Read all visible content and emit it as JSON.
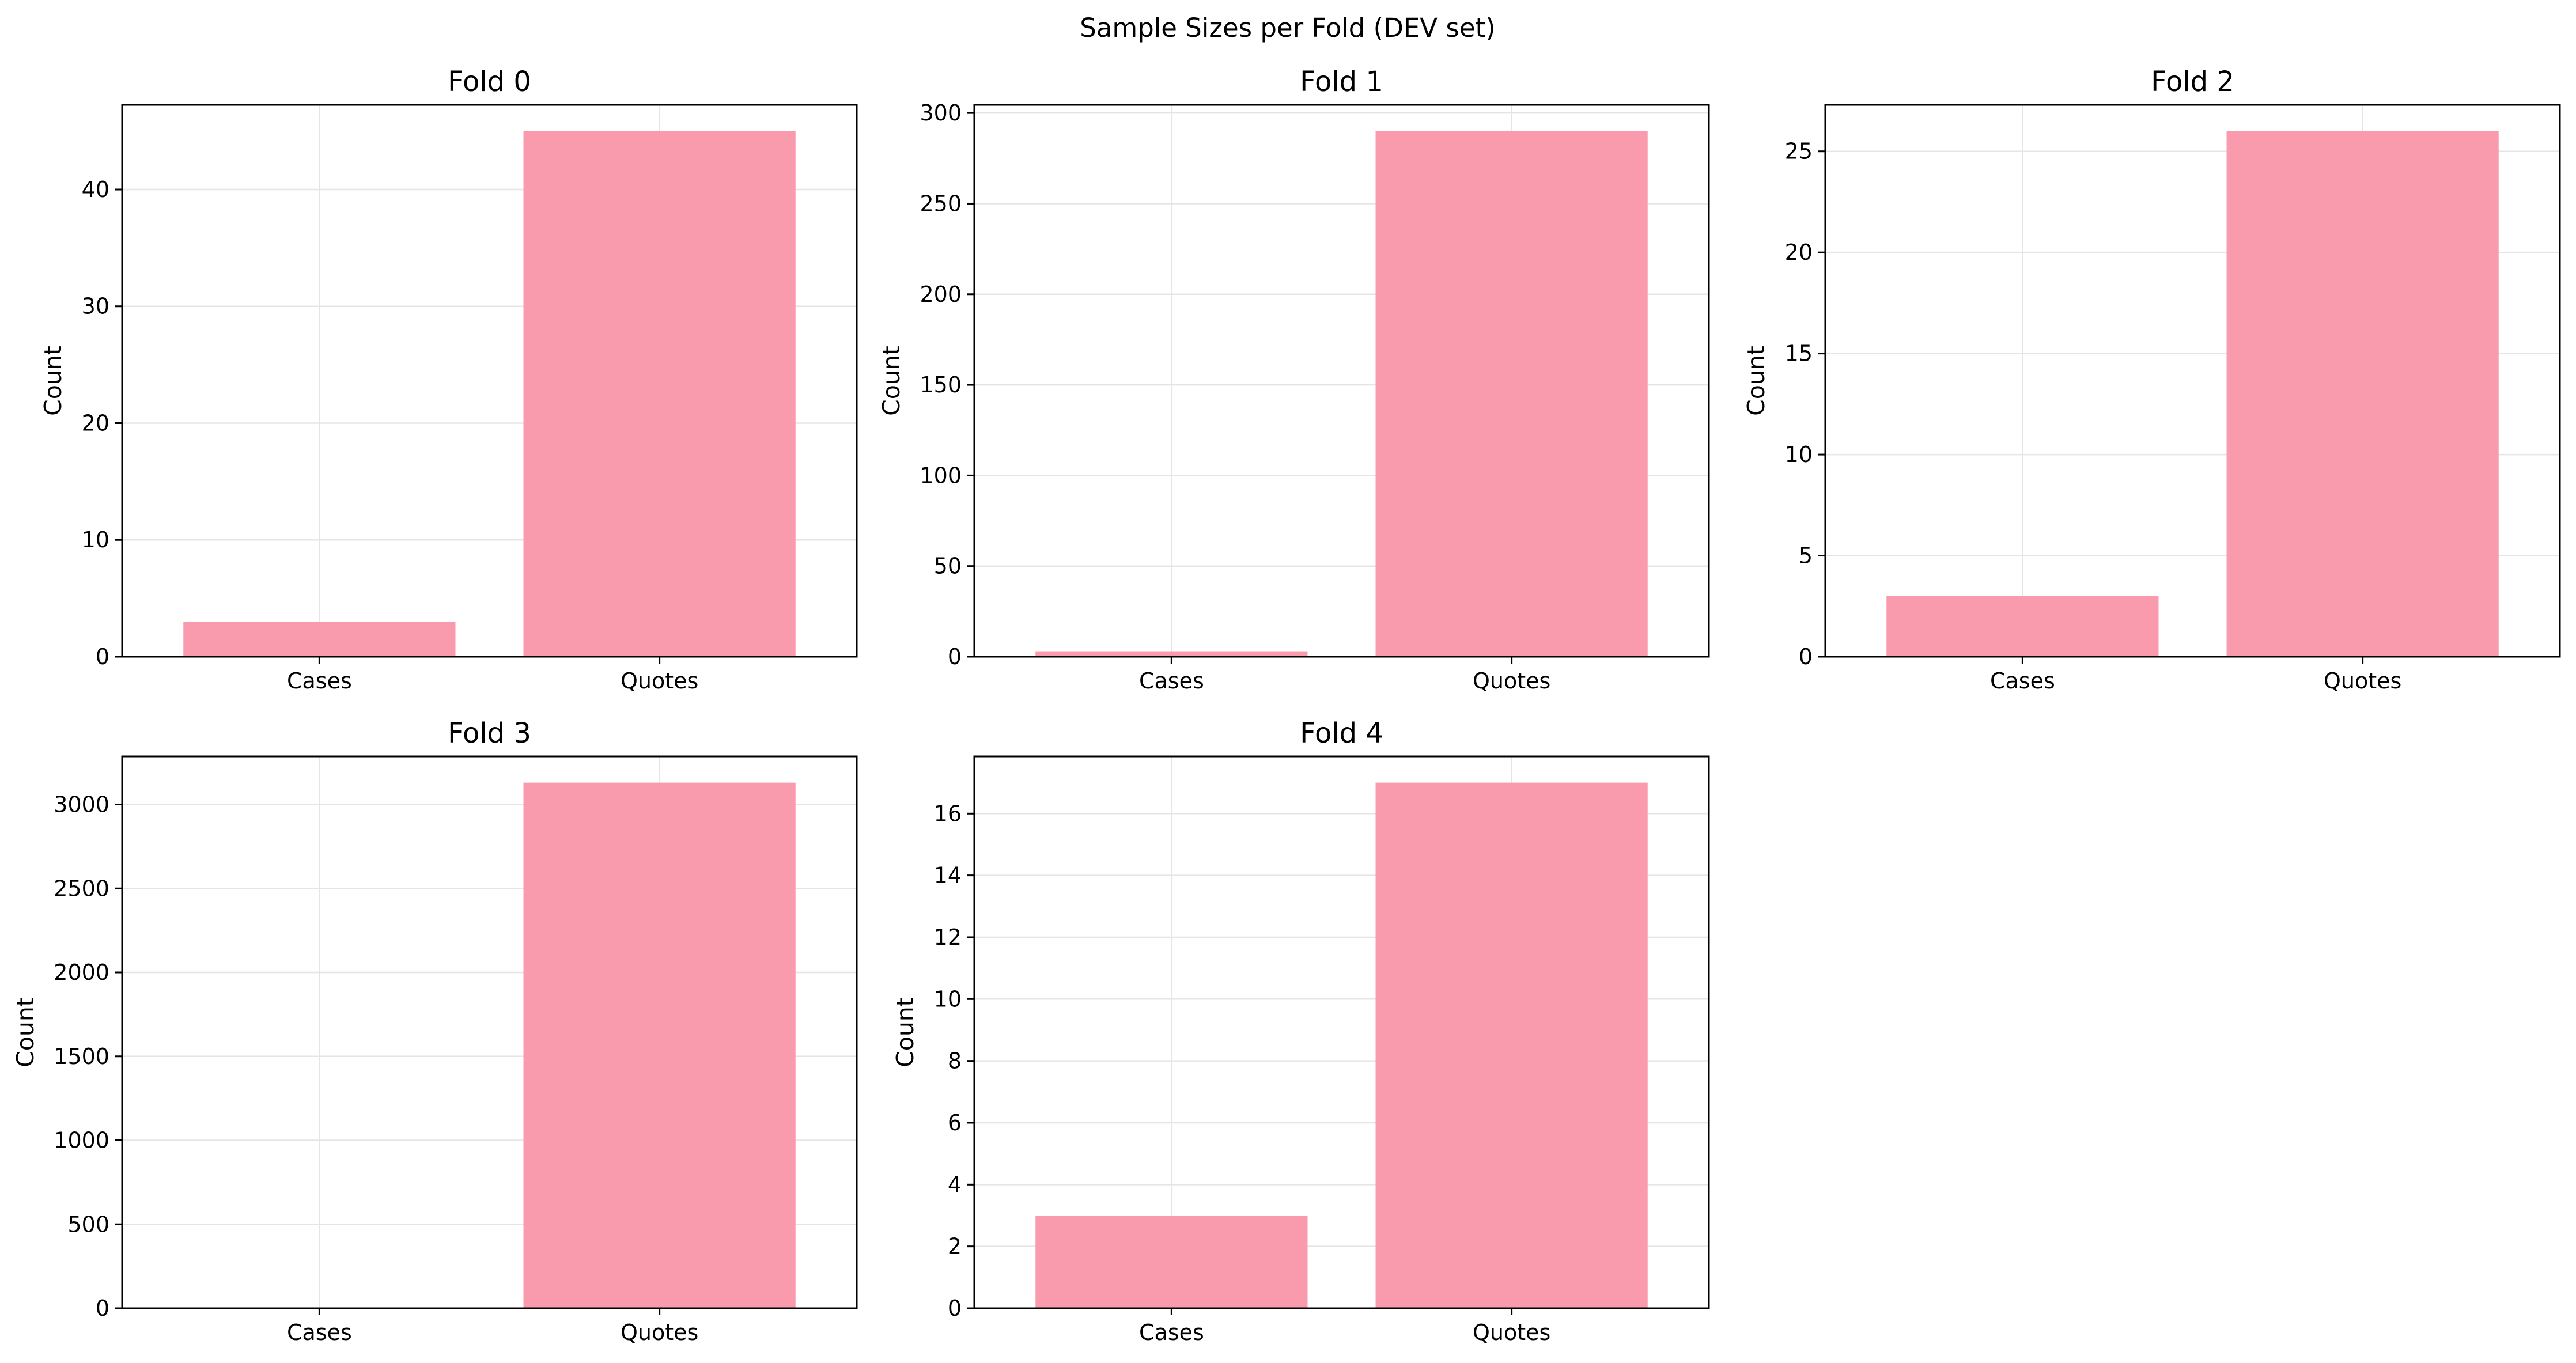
{
  "figure": {
    "title": "Sample Sizes per Fold (DEV set)"
  },
  "chart_data": [
    {
      "type": "bar",
      "title": "Fold 0",
      "ylabel": "Count",
      "categories": [
        "Cases",
        "Quotes"
      ],
      "values": [
        3,
        45
      ],
      "ylim": [
        0,
        47.25
      ],
      "yticks": [
        0,
        10,
        20,
        30,
        40
      ],
      "grid": true,
      "bar_color": "#f99bad"
    },
    {
      "type": "bar",
      "title": "Fold 1",
      "ylabel": "Count",
      "categories": [
        "Cases",
        "Quotes"
      ],
      "values": [
        3,
        290
      ],
      "ylim": [
        0,
        304.5
      ],
      "yticks": [
        0,
        50,
        100,
        150,
        200,
        250,
        300
      ],
      "grid": true,
      "bar_color": "#f99bad"
    },
    {
      "type": "bar",
      "title": "Fold 2",
      "ylabel": "Count",
      "categories": [
        "Cases",
        "Quotes"
      ],
      "values": [
        3,
        26
      ],
      "ylim": [
        0,
        27.3
      ],
      "yticks": [
        0,
        5,
        10,
        15,
        20,
        25
      ],
      "grid": true,
      "bar_color": "#f99bad"
    },
    {
      "type": "bar",
      "title": "Fold 3",
      "ylabel": "Count",
      "categories": [
        "Cases",
        "Quotes"
      ],
      "values": [
        3,
        3130
      ],
      "ylim": [
        0,
        3286.5
      ],
      "yticks": [
        0,
        500,
        1000,
        1500,
        2000,
        2500,
        3000
      ],
      "grid": true,
      "bar_color": "#f99bad"
    },
    {
      "type": "bar",
      "title": "Fold 4",
      "ylabel": "Count",
      "categories": [
        "Cases",
        "Quotes"
      ],
      "values": [
        3,
        17
      ],
      "ylim": [
        0,
        17.85
      ],
      "yticks": [
        0,
        2,
        4,
        6,
        8,
        10,
        12,
        14,
        16
      ],
      "grid": true,
      "bar_color": "#f99bad"
    }
  ]
}
